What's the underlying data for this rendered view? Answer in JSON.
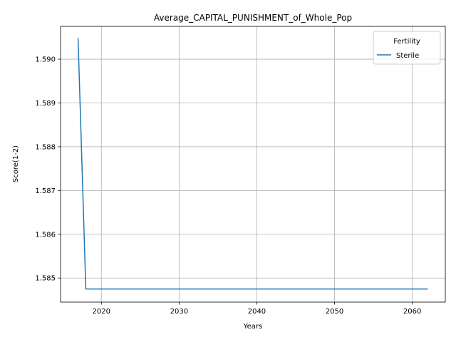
{
  "chart_data": {
    "type": "line",
    "title": "Average_CAPITAL_PUNISHMENT_of_Whole_Pop",
    "xlabel": "Years",
    "ylabel": "Score(1-2)",
    "xlim": [
      2014.75,
      2064.25
    ],
    "ylim": [
      1.58445,
      1.59075
    ],
    "xticks": [
      2020,
      2030,
      2040,
      2050,
      2060
    ],
    "yticks": [
      1.585,
      1.586,
      1.587,
      1.588,
      1.589,
      1.59
    ],
    "ytick_labels": [
      "1.585",
      "1.586",
      "1.587",
      "1.588",
      "1.589",
      "1.590"
    ],
    "grid": true,
    "legend": {
      "title": "Fertility",
      "placement": "top-right"
    },
    "series": [
      {
        "name": "Sterile",
        "color": "#1f77b4",
        "x": [
          2017,
          2018,
          2019,
          2020,
          2021,
          2022,
          2023,
          2024,
          2025,
          2026,
          2027,
          2028,
          2029,
          2030,
          2031,
          2032,
          2033,
          2034,
          2035,
          2036,
          2037,
          2038,
          2039,
          2040,
          2041,
          2042,
          2043,
          2044,
          2045,
          2046,
          2047,
          2048,
          2049,
          2050,
          2051,
          2052,
          2053,
          2054,
          2055,
          2056,
          2057,
          2058,
          2059,
          2060,
          2061,
          2062
        ],
        "values": [
          1.59048,
          1.58475,
          1.58475,
          1.58475,
          1.58475,
          1.58475,
          1.58475,
          1.58475,
          1.58475,
          1.58475,
          1.58475,
          1.58475,
          1.58475,
          1.58475,
          1.58475,
          1.58475,
          1.58475,
          1.58475,
          1.58475,
          1.58475,
          1.58475,
          1.58475,
          1.58475,
          1.58475,
          1.58475,
          1.58475,
          1.58475,
          1.58475,
          1.58475,
          1.58475,
          1.58475,
          1.58475,
          1.58475,
          1.58475,
          1.58475,
          1.58475,
          1.58475,
          1.58475,
          1.58475,
          1.58475,
          1.58475,
          1.58475,
          1.58475,
          1.58475,
          1.58475,
          1.58475
        ]
      }
    ]
  }
}
